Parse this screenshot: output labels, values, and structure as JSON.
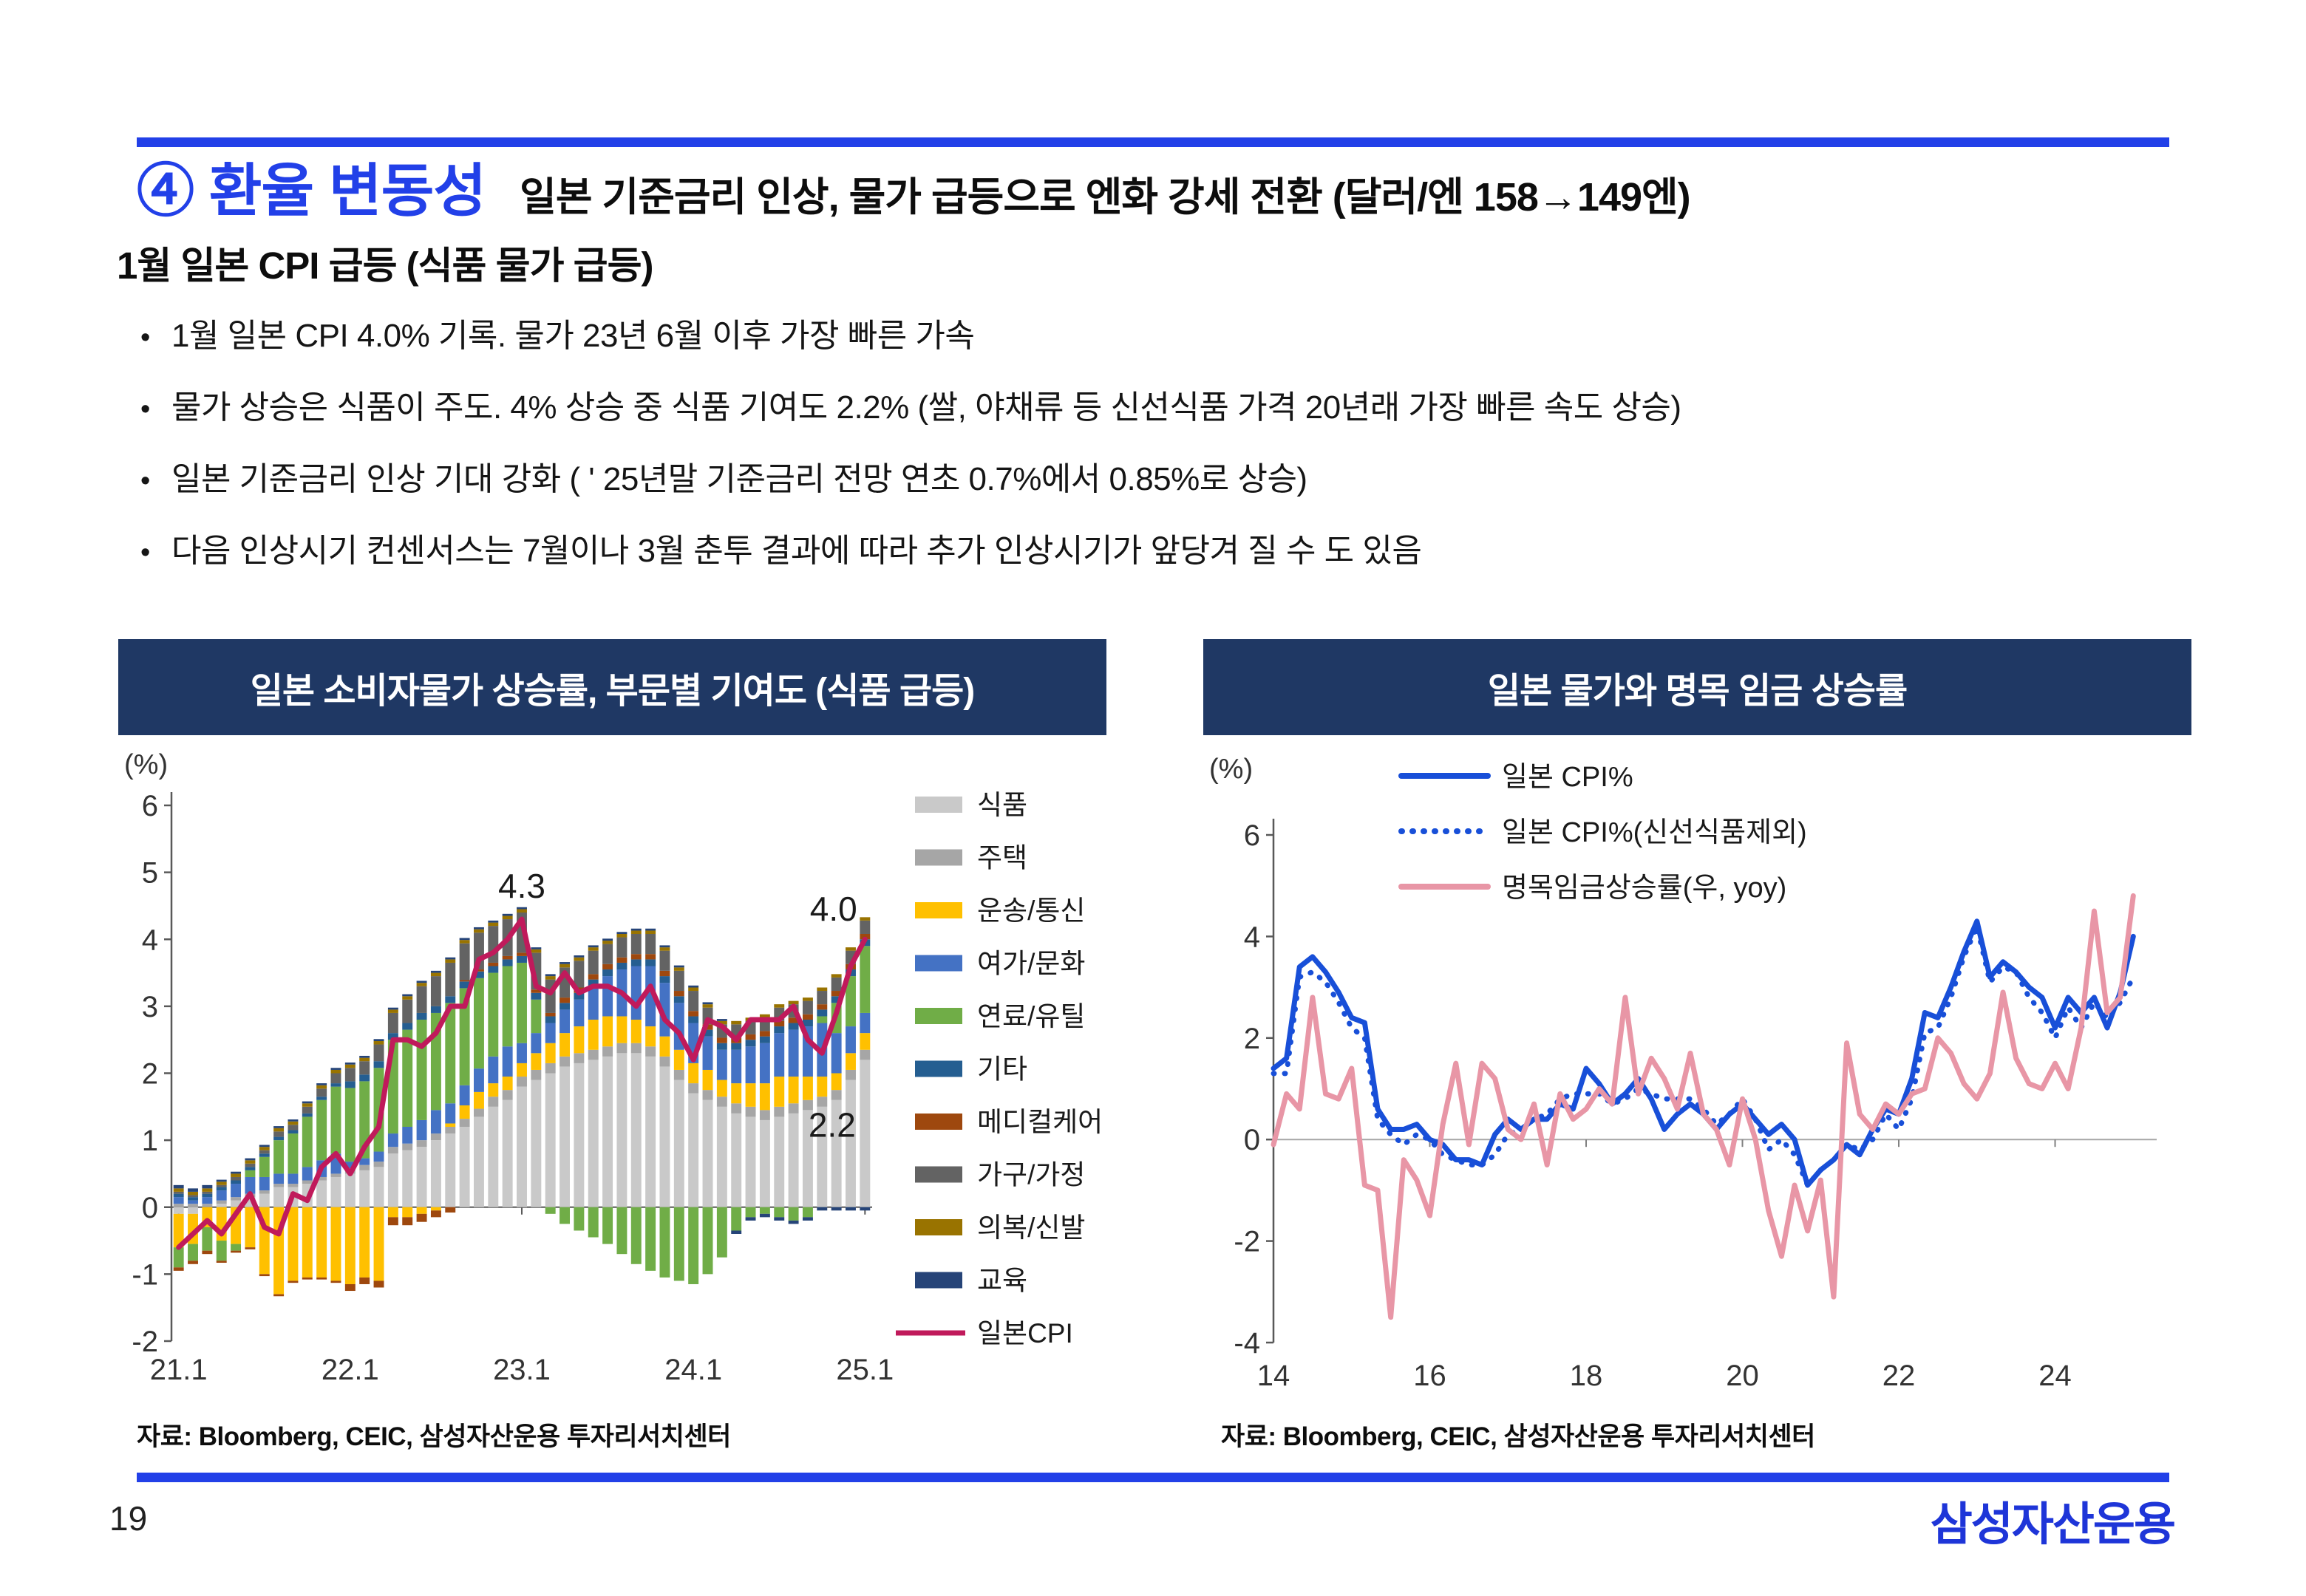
{
  "theme": {
    "accent": "#2240e8",
    "panel": "#1f3864",
    "logo_blue": "#1e35d8"
  },
  "header": {
    "title": "④ 환율 변동성",
    "subtitle": "일본 기준금리 인상, 물가 급등으로 엔화 강세 전환 (달러/엔 158→149엔)"
  },
  "section": {
    "heading": "1월 일본 CPI 급등 (식품 물가 급등)",
    "bullet_char": "•",
    "bullets": [
      "1월 일본 CPI 4.0% 기록. 물가 23년 6월 이후 가장 빠른 가속",
      "물가 상승은 식품이 주도. 4% 상승 중 식품 기여도 2.2% (쌀, 야채류 등 신선식품 가격 20년래 가장 빠른 속도 상승)",
      "일본 기준금리 인상 기대 강화 ( ' 25년말 기준금리 전망 연초 0.7%에서 0.85%로 상승)",
      "다음 인상시기 컨센서스는 7월이나 3월 춘투 결과에 따라 추가 인상시기가 앞당겨 질 수 도 있음"
    ]
  },
  "left_panel": {
    "title": "일본 소비자물가 상승률, 부문별 기여도 (식품 급등)",
    "source": "자료: Bloomberg, CEIC, 삼성자산운용 투자리서치센터"
  },
  "right_panel": {
    "title": "일본 물가와 명목 임금 상승률",
    "source": "자료: Bloomberg, CEIC, 삼성자산운용 투자리서치센터"
  },
  "footer": {
    "page_number": "19",
    "logo": "삼성자산운용"
  },
  "chart_data": [
    {
      "type": "bar",
      "subtype": "stacked-bar-with-line",
      "title": "일본 소비자물가 상승률, 부문별 기여도 (식품 급등)",
      "unit": "(%)",
      "ylim": [
        -2,
        6
      ],
      "yticks": [
        6,
        5,
        4,
        3,
        2,
        1,
        0,
        -1,
        -2
      ],
      "grid": false,
      "legend_position": "right",
      "categories": [
        "21.1",
        "21.2",
        "21.3",
        "21.4",
        "21.5",
        "21.6",
        "21.7",
        "21.8",
        "21.9",
        "21.10",
        "21.11",
        "21.12",
        "22.1",
        "22.2",
        "22.3",
        "22.4",
        "22.5",
        "22.6",
        "22.7",
        "22.8",
        "22.9",
        "22.10",
        "22.11",
        "22.12",
        "23.1",
        "23.2",
        "23.3",
        "23.4",
        "23.5",
        "23.6",
        "23.7",
        "23.8",
        "23.9",
        "23.10",
        "23.11",
        "23.12",
        "24.1",
        "24.2",
        "24.3",
        "24.4",
        "24.5",
        "24.6",
        "24.7",
        "24.8",
        "24.9",
        "24.10",
        "24.11",
        "24.12",
        "25.1"
      ],
      "x_tick_labels": [
        "21.1",
        "22.1",
        "23.1",
        "24.1",
        "25.1"
      ],
      "x_tick_positions": [
        0,
        12,
        24,
        36,
        48
      ],
      "series": [
        {
          "name": "식품",
          "color": "#c9c9c9",
          "values": [
            -0.1,
            -0.1,
            0,
            0.05,
            0.1,
            0.15,
            0.2,
            0.3,
            0.3,
            0.35,
            0.4,
            0.45,
            0.5,
            0.55,
            0.6,
            0.8,
            0.85,
            0.9,
            1.0,
            1.1,
            1.2,
            1.35,
            1.5,
            1.6,
            1.8,
            1.9,
            2.0,
            2.1,
            2.15,
            2.2,
            2.25,
            2.3,
            2.3,
            2.25,
            2.1,
            1.9,
            1.7,
            1.6,
            1.5,
            1.4,
            1.35,
            1.3,
            1.35,
            1.4,
            1.45,
            1.5,
            1.6,
            1.9,
            2.2
          ]
        },
        {
          "name": "주택",
          "color": "#a6a6a6",
          "values": [
            0.05,
            0.05,
            0.05,
            0.05,
            0.05,
            0.05,
            0.05,
            0.05,
            0.05,
            0.05,
            0.05,
            0.05,
            0.08,
            0.08,
            0.08,
            0.1,
            0.1,
            0.1,
            0.1,
            0.1,
            0.12,
            0.12,
            0.15,
            0.15,
            0.15,
            0.15,
            0.15,
            0.15,
            0.15,
            0.15,
            0.15,
            0.15,
            0.15,
            0.15,
            0.15,
            0.15,
            0.15,
            0.15,
            0.15,
            0.15,
            0.15,
            0.15,
            0.15,
            0.15,
            0.15,
            0.15,
            0.15,
            0.15,
            0.15
          ]
        },
        {
          "name": "운송/통신",
          "color": "#ffc000",
          "values": [
            -0.5,
            -0.45,
            -0.3,
            -0.5,
            -0.55,
            -0.6,
            -1.0,
            -1.3,
            -1.1,
            -1.05,
            -1.05,
            -1.1,
            -1.15,
            -1.05,
            -1.1,
            -0.15,
            -0.15,
            -0.1,
            -0.05,
            0.05,
            0.2,
            0.25,
            0.2,
            0.2,
            0.2,
            0.25,
            0.3,
            0.35,
            0.4,
            0.45,
            0.45,
            0.4,
            0.35,
            0.3,
            0.3,
            0.3,
            0.3,
            0.3,
            0.25,
            0.3,
            0.35,
            0.4,
            0.45,
            0.4,
            0.35,
            0.3,
            0.25,
            0.25,
            0.25
          ]
        },
        {
          "name": "여가/문화",
          "color": "#4472c4",
          "values": [
            0.1,
            0.05,
            0.1,
            0.15,
            0.2,
            0.25,
            0.2,
            0.15,
            0.15,
            0.2,
            0.25,
            0.3,
            0.1,
            0.1,
            0.15,
            0.2,
            0.25,
            0.3,
            0.35,
            0.3,
            0.3,
            0.35,
            0.4,
            0.45,
            0.3,
            0.3,
            0.3,
            0.35,
            0.4,
            0.5,
            0.6,
            0.7,
            0.8,
            0.9,
            0.8,
            0.7,
            0.6,
            0.5,
            0.45,
            0.5,
            0.55,
            0.6,
            0.65,
            0.7,
            0.75,
            0.8,
            0.6,
            0.4,
            0.3
          ]
        },
        {
          "name": "연료/유틸",
          "color": "#70ad47",
          "values": [
            -0.3,
            -0.25,
            -0.35,
            -0.3,
            -0.1,
            0.1,
            0.3,
            0.5,
            0.6,
            0.75,
            0.9,
            1.0,
            1.1,
            1.15,
            1.25,
            1.4,
            1.45,
            1.5,
            1.45,
            1.5,
            1.45,
            1.35,
            1.25,
            1.2,
            1.2,
            0.5,
            -0.1,
            -0.25,
            -0.35,
            -0.45,
            -0.55,
            -0.7,
            -0.85,
            -0.95,
            -1.05,
            -1.1,
            -1.15,
            -1.0,
            -0.75,
            -0.35,
            -0.15,
            -0.1,
            -0.15,
            -0.2,
            -0.15,
            0.1,
            0.45,
            0.75,
            1.0
          ]
        },
        {
          "name": "기타",
          "color": "#255e91",
          "values": [
            0.05,
            0.05,
            0.05,
            0.05,
            0.05,
            0.05,
            0.05,
            0.05,
            0.05,
            0.05,
            0.05,
            0.05,
            0.1,
            0.1,
            0.1,
            0.1,
            0.1,
            0.1,
            0.1,
            0.1,
            0.1,
            0.1,
            0.1,
            0.1,
            0.1,
            0.1,
            0.1,
            0.1,
            0.1,
            0.1,
            0.1,
            0.1,
            0.1,
            0.1,
            0.1,
            0.1,
            0.1,
            0.1,
            0.1,
            0.1,
            0.1,
            0.1,
            0.1,
            0.1,
            0.1,
            0.1,
            0.1,
            0.1,
            0.1
          ]
        },
        {
          "name": "메디컬케어",
          "color": "#9e480e",
          "values": [
            -0.05,
            -0.05,
            -0.05,
            -0.03,
            -0.03,
            -0.03,
            -0.03,
            -0.03,
            -0.03,
            -0.03,
            -0.03,
            -0.03,
            -0.1,
            -0.1,
            -0.1,
            -0.12,
            -0.12,
            -0.12,
            -0.1,
            -0.08,
            0.02,
            0.03,
            0.05,
            0.05,
            0.05,
            0.05,
            0.05,
            0.08,
            0.08,
            0.08,
            0.08,
            0.08,
            0.08,
            0.08,
            0.08,
            0.08,
            0.08,
            0.08,
            0.08,
            0.08,
            0.08,
            0.08,
            0.08,
            0.08,
            0.08,
            0.08,
            0.08,
            0.08,
            0.08
          ]
        },
        {
          "name": "가구/가정",
          "color": "#636363",
          "values": [
            0.03,
            0.03,
            0.03,
            0.03,
            0.05,
            0.05,
            0.05,
            0.08,
            0.08,
            0.1,
            0.12,
            0.15,
            0.2,
            0.2,
            0.25,
            0.3,
            0.35,
            0.4,
            0.45,
            0.5,
            0.55,
            0.55,
            0.55,
            0.55,
            0.6,
            0.55,
            0.5,
            0.45,
            0.4,
            0.35,
            0.3,
            0.3,
            0.3,
            0.3,
            0.3,
            0.3,
            0.3,
            0.25,
            0.2,
            0.2,
            0.2,
            0.2,
            0.2,
            0.2,
            0.2,
            0.2,
            0.2,
            0.2,
            0.2
          ]
        },
        {
          "name": "의복/신발",
          "color": "#997300",
          "values": [
            0.05,
            0.05,
            0.05,
            0.05,
            0.05,
            0.05,
            0.05,
            0.05,
            0.05,
            0.05,
            0.05,
            0.05,
            0.05,
            0.05,
            0.05,
            0.05,
            0.05,
            0.05,
            0.05,
            0.05,
            0.05,
            0.05,
            0.05,
            0.05,
            0.05,
            0.05,
            0.05,
            0.05,
            0.05,
            0.05,
            0.05,
            0.05,
            0.05,
            0.05,
            0.05,
            0.05,
            0.05,
            0.05,
            0.05,
            0.05,
            0.05,
            0.05,
            0.05,
            0.05,
            0.05,
            0.05,
            0.05,
            0.05,
            0.05
          ]
        },
        {
          "name": "교육",
          "color": "#264478",
          "values": [
            0.05,
            0.05,
            0.05,
            0.03,
            0.03,
            0.03,
            0.03,
            0.03,
            0.03,
            0.03,
            0.03,
            0.03,
            0.03,
            0.03,
            0.03,
            0.03,
            0.03,
            0.03,
            0.03,
            0.03,
            0.03,
            0.03,
            0.03,
            0.03,
            0.03,
            0.03,
            0.03,
            0.03,
            0.03,
            0.03,
            0.03,
            0.03,
            0.03,
            0.03,
            0.03,
            0.03,
            0.03,
            0.03,
            0.03,
            -0.05,
            -0.05,
            -0.05,
            -0.05,
            -0.05,
            -0.05,
            -0.05,
            -0.05,
            -0.05,
            -0.05
          ]
        }
      ],
      "line": {
        "name": "일본CPI",
        "color": "#c01a5b",
        "values": [
          -0.6,
          -0.4,
          -0.2,
          -0.4,
          -0.1,
          0.2,
          -0.3,
          -0.4,
          0.2,
          0.1,
          0.6,
          0.8,
          0.5,
          0.9,
          1.2,
          2.5,
          2.5,
          2.4,
          2.6,
          3.0,
          3.0,
          3.7,
          3.8,
          4.0,
          4.3,
          3.3,
          3.2,
          3.5,
          3.2,
          3.3,
          3.3,
          3.2,
          3.0,
          3.3,
          2.8,
          2.6,
          2.2,
          2.8,
          2.7,
          2.5,
          2.8,
          2.8,
          2.8,
          3.0,
          2.5,
          2.3,
          2.9,
          3.6,
          4.0
        ]
      },
      "annotations": [
        {
          "text": "4.3",
          "xi": 24,
          "v": 4.62
        },
        {
          "text": "4.0",
          "xi": 45.8,
          "v": 4.28
        },
        {
          "text": "2.2",
          "xi": 45.7,
          "v": 1.05
        }
      ]
    },
    {
      "type": "line",
      "title": "일본 물가와 명목 임금 상승률",
      "unit": "(%)",
      "ylim": [
        -4,
        6
      ],
      "yticks": [
        6,
        4,
        2,
        0,
        -2,
        -4
      ],
      "grid": false,
      "legend_position": "top-inside",
      "xlim": [
        2014,
        2025.3
      ],
      "x_start": 2014,
      "x_step_years": 0.16667,
      "x_tick_labels": [
        "14",
        "16",
        "18",
        "20",
        "22",
        "24"
      ],
      "x_tick_years": [
        2014,
        2016,
        2018,
        2020,
        2022,
        2024
      ],
      "series": [
        {
          "name": "일본 CPI%",
          "color": "#184fd8",
          "style": "solid",
          "values": [
            1.4,
            1.6,
            3.4,
            3.6,
            3.3,
            2.9,
            2.4,
            2.3,
            0.6,
            0.2,
            0.2,
            0.3,
            0.0,
            -0.1,
            -0.4,
            -0.4,
            -0.5,
            0.1,
            0.4,
            0.2,
            0.4,
            0.4,
            0.7,
            0.6,
            1.4,
            1.1,
            0.7,
            0.9,
            1.2,
            0.8,
            0.2,
            0.5,
            0.7,
            0.5,
            0.2,
            0.5,
            0.7,
            0.4,
            0.1,
            0.3,
            0.0,
            -0.9,
            -0.6,
            -0.4,
            -0.1,
            -0.3,
            0.2,
            0.6,
            0.5,
            1.2,
            2.5,
            2.4,
            3.0,
            3.7,
            4.3,
            3.2,
            3.5,
            3.3,
            3.0,
            2.8,
            2.2,
            2.8,
            2.5,
            2.8,
            2.2,
            2.9,
            4.0
          ]
        },
        {
          "name": "일본 CPI%(신선식품제외)",
          "color": "#184fd8",
          "style": "dotted",
          "values": [
            1.3,
            1.3,
            3.2,
            3.3,
            3.1,
            2.7,
            2.2,
            2.0,
            0.4,
            0.1,
            -0.1,
            0.1,
            0.0,
            -0.3,
            -0.4,
            -0.5,
            -0.5,
            -0.3,
            0.1,
            0.2,
            0.4,
            0.5,
            0.8,
            0.9,
            0.9,
            0.9,
            0.7,
            0.8,
            1.0,
            0.9,
            0.8,
            0.8,
            0.8,
            0.6,
            0.3,
            0.5,
            0.8,
            0.4,
            -0.2,
            0.0,
            -0.3,
            -0.9,
            -0.6,
            -0.4,
            -0.1,
            -0.2,
            0.0,
            0.5,
            0.2,
            0.8,
            2.1,
            2.2,
            2.8,
            3.6,
            4.2,
            3.1,
            3.4,
            3.3,
            2.8,
            2.5,
            2.0,
            2.6,
            2.2,
            2.7,
            2.4,
            2.7,
            3.2
          ]
        },
        {
          "name": "명목임금상승률(우, yoy)",
          "color": "#e896a6",
          "style": "solid",
          "values": [
            -0.1,
            0.9,
            0.6,
            2.8,
            0.9,
            0.8,
            1.4,
            -0.9,
            -1.0,
            -3.5,
            -0.4,
            -0.8,
            -1.5,
            0.3,
            1.5,
            -0.1,
            1.5,
            1.2,
            0.2,
            0.0,
            0.7,
            -0.5,
            0.9,
            0.4,
            0.6,
            1.0,
            0.7,
            2.8,
            0.9,
            1.6,
            1.2,
            0.6,
            1.7,
            0.5,
            0.2,
            -0.5,
            0.8,
            0.0,
            -1.4,
            -2.3,
            -0.9,
            -1.8,
            -0.8,
            -3.1,
            1.9,
            0.5,
            0.2,
            0.7,
            0.5,
            0.9,
            1.0,
            2.0,
            1.7,
            1.1,
            0.8,
            1.3,
            2.9,
            1.6,
            1.1,
            1.0,
            1.5,
            1.0,
            2.2,
            4.5,
            2.5,
            2.8,
            4.8
          ]
        }
      ]
    }
  ]
}
